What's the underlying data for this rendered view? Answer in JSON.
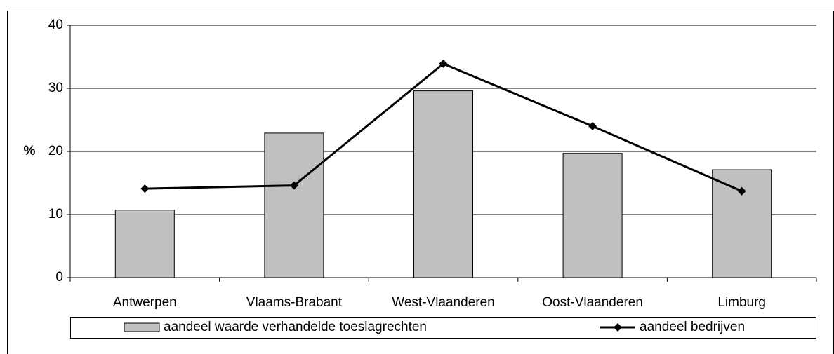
{
  "chart_data": {
    "type": "bar",
    "y_label": "%",
    "categories": [
      "Antwerpen",
      "Vlaams-Brabant",
      "West-Vlaanderen",
      "Oost-Vlaanderen",
      "Limburg"
    ],
    "series": [
      {
        "name": "aandeel waarde verhandelde toeslagrechten",
        "type": "bar",
        "color": "#c0c0c0",
        "values": [
          10.7,
          22.9,
          29.6,
          19.7,
          17.1
        ]
      },
      {
        "name": "aandeel bedrijven",
        "type": "line",
        "color": "#000000",
        "values": [
          14.1,
          14.6,
          33.9,
          24.0,
          13.7
        ]
      }
    ],
    "ylim": [
      0,
      40
    ],
    "yticks": [
      0,
      10,
      20,
      30,
      40
    ],
    "grid": true,
    "legend": "bottom"
  }
}
